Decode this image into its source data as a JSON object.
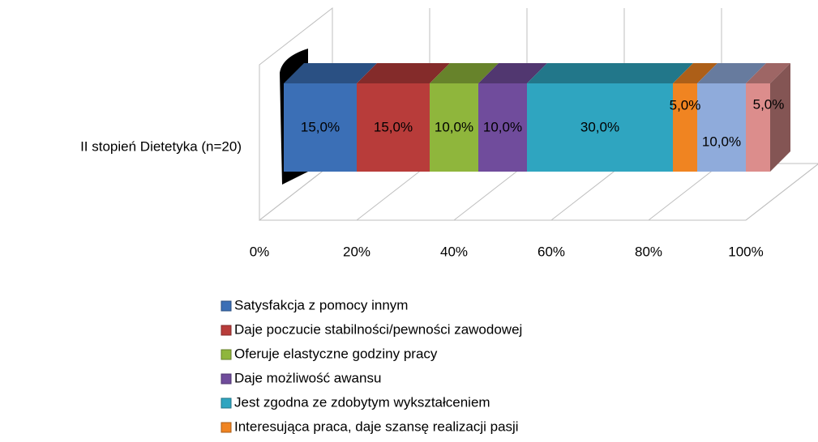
{
  "chart_data": {
    "type": "stacked-bar-3d",
    "categories": [
      "II stopień Dietetyka (n=20)"
    ],
    "series": [
      {
        "name": "Satysfakcja z pomocy innym",
        "color": "#3b6fb6",
        "values": [
          15
        ],
        "value_labels": [
          "15,0%"
        ]
      },
      {
        "name": "Daje poczucie stabilności/pewności zawodowej",
        "color": "#b83c3a",
        "values": [
          15
        ],
        "value_labels": [
          "15,0%"
        ]
      },
      {
        "name": "Oferuje elastyczne godziny pracy",
        "color": "#8fb63c",
        "values": [
          10
        ],
        "value_labels": [
          "10,0%"
        ]
      },
      {
        "name": "Daje możliwość awansu",
        "color": "#704c9c",
        "values": [
          10
        ],
        "value_labels": [
          "10,0%"
        ]
      },
      {
        "name": "Jest zgodna ze zdobytym wykształceniem",
        "color": "#2fa5c0",
        "values": [
          30
        ],
        "value_labels": [
          "30,0%"
        ]
      },
      {
        "name": "Interesująca praca, daje szansę realizacji pasji",
        "color": "#f08421",
        "values": [
          5
        ],
        "value_labels": [
          "5,0%"
        ]
      },
      {
        "color": "#8fabdb",
        "values": [
          10
        ],
        "value_labels": [
          "10,0%"
        ]
      },
      {
        "color": "#dc8d8c",
        "values": [
          5
        ],
        "value_labels": [
          "5,0%"
        ]
      }
    ],
    "xlim": [
      0,
      100
    ],
    "xticks": [
      {
        "value": 0,
        "label": "0%"
      },
      {
        "value": 20,
        "label": "20%"
      },
      {
        "value": 40,
        "label": "40%"
      },
      {
        "value": 60,
        "label": "60%"
      },
      {
        "value": 80,
        "label": "80%"
      },
      {
        "value": 100,
        "label": "100%"
      }
    ],
    "grid": true
  }
}
